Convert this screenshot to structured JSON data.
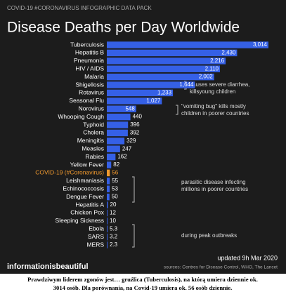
{
  "chart_data": {
    "type": "bar",
    "orientation": "horizontal",
    "header": "COVID-19 #CORONAVIRUS INFOGRAPHIC DATA PACK",
    "title": "Disease Deaths per Day Worldwide",
    "categories": [
      "Tuberculosis",
      "Hepatitis B",
      "Pneumonia",
      "HIV / AIDS",
      "Malaria",
      "Shigellosis",
      "Rotavirus",
      "Seasonal Flu",
      "Norovirus",
      "Whooping Cough",
      "Typhoid",
      "Cholera",
      "Meningitis",
      "Measles",
      "Rabies",
      "Yellow Fever",
      "COVID-19 (#Coronavirus)",
      "Leishmaniasis",
      "Echinococcosis",
      "Dengue Fever",
      "Hepatitis A",
      "Chicken Pox",
      "Sleeping Sickness",
      "Ebola",
      "SARS",
      "MERS"
    ],
    "values": [
      3014,
      2430,
      2216,
      2110,
      2002,
      1644,
      1233,
      1027,
      548,
      440,
      396,
      392,
      329,
      247,
      162,
      82,
      56,
      55,
      53,
      50,
      20,
      12,
      10,
      5.3,
      3.2,
      2.3
    ],
    "value_labels": [
      "3,014",
      "2,430",
      "2,216",
      "2,110",
      "2,002",
      "1,644",
      "1,233",
      "1,027",
      "548",
      "440",
      "396",
      "392",
      "329",
      "247",
      "162",
      "82",
      "56",
      "55",
      "53",
      "50",
      "20",
      "12",
      "10",
      "5.3",
      "3.2",
      "2.3"
    ],
    "color": "#3560e6",
    "highlight": {
      "index": 16,
      "color": "#f29a2e"
    },
    "annotations": [
      {
        "lines": [
          "causes severe diarrhea,",
          "killsyoung children"
        ]
      },
      {
        "lines": [
          "\"vomiting bug\" kills mostly",
          "children in poorer countries"
        ]
      },
      {
        "lines": [
          "parasitic disease infecting",
          "millions in poorer countries"
        ]
      },
      {
        "lines": [
          "during peak outbreaks"
        ]
      }
    ],
    "updated": "updated 9h Mar 2020",
    "sources": "sources: Centres for Disease Control, WHO, The Lancet",
    "brand": "informationisbeautiful"
  },
  "caption": [
    "Prawdziwym liderem zgonów jest… gruźlica (Tuberculosis), na którą umiera dziennie ok.",
    "3014 osób. Dla porównania, na Covid-19 umiera ok. 56 osób dziennie."
  ]
}
